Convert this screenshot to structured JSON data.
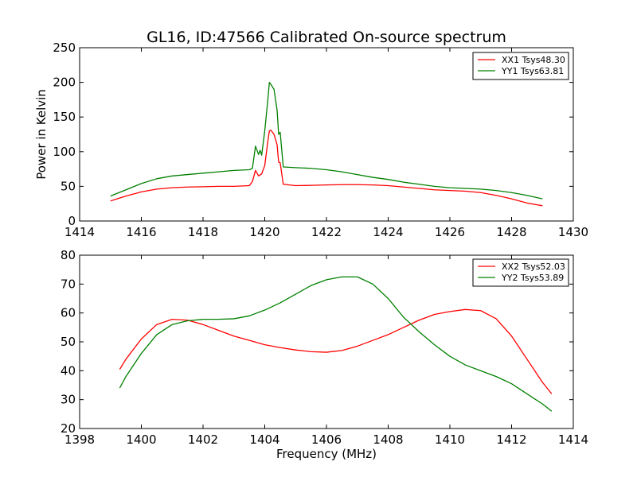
{
  "title": "GL16, ID:47566 Calibrated On-source spectrum",
  "chart_data": [
    {
      "type": "line",
      "ylabel": "Power in Kelvin",
      "xlabel": "",
      "xlim": [
        1414,
        1430
      ],
      "ylim": [
        0,
        250
      ],
      "xticks": [
        1414,
        1416,
        1418,
        1420,
        1422,
        1424,
        1426,
        1428,
        1430
      ],
      "yticks": [
        0,
        50,
        100,
        150,
        200,
        250
      ],
      "legend_position": "top-right",
      "grid": false,
      "series": [
        {
          "name": "XX1 Tsys48.30",
          "color": "#ff0000",
          "x": [
            1415.0,
            1415.5,
            1416.0,
            1416.5,
            1417.0,
            1417.5,
            1418.0,
            1418.5,
            1419.0,
            1419.5,
            1419.6,
            1419.7,
            1419.8,
            1419.9,
            1420.0,
            1420.1,
            1420.15,
            1420.2,
            1420.3,
            1420.4,
            1420.45,
            1420.5,
            1420.6,
            1421.0,
            1421.5,
            1422.0,
            1422.5,
            1423.0,
            1423.5,
            1424.0,
            1424.5,
            1425.0,
            1425.5,
            1426.0,
            1426.5,
            1427.0,
            1427.5,
            1428.0,
            1428.5,
            1429.0
          ],
          "y": [
            29,
            36,
            42,
            46,
            48,
            49,
            49.5,
            50,
            50,
            51,
            57,
            73,
            65,
            68,
            80,
            115,
            130,
            131,
            125,
            110,
            85,
            84,
            53,
            51,
            51.5,
            52,
            52.5,
            52.5,
            52,
            51,
            49,
            47,
            45,
            44,
            43,
            41,
            37,
            32,
            26,
            22
          ]
        },
        {
          "name": "YY1 Tsys63.81",
          "color": "#008000",
          "x": [
            1415.0,
            1415.5,
            1416.0,
            1416.5,
            1417.0,
            1417.5,
            1418.0,
            1418.5,
            1419.0,
            1419.5,
            1419.6,
            1419.7,
            1419.75,
            1419.8,
            1419.85,
            1419.9,
            1420.0,
            1420.1,
            1420.15,
            1420.2,
            1420.3,
            1420.4,
            1420.45,
            1420.5,
            1420.6,
            1421.0,
            1421.5,
            1422.0,
            1422.5,
            1423.0,
            1423.5,
            1424.0,
            1424.5,
            1425.0,
            1425.5,
            1426.0,
            1426.5,
            1427.0,
            1427.5,
            1428.0,
            1428.5,
            1429.0
          ],
          "y": [
            36,
            45,
            54,
            61,
            65,
            67,
            69,
            71,
            73,
            74,
            76,
            108,
            102,
            96,
            102,
            95,
            130,
            175,
            200,
            197,
            190,
            160,
            125,
            128,
            78,
            77,
            76,
            74,
            71,
            67,
            63,
            60,
            56,
            53,
            50,
            48,
            47,
            46,
            44,
            41,
            37,
            32
          ]
        }
      ]
    },
    {
      "type": "line",
      "ylabel": "",
      "xlabel": "Frequency (MHz)",
      "xlim": [
        1398,
        1414
      ],
      "ylim": [
        20,
        80
      ],
      "xticks": [
        1398,
        1400,
        1402,
        1404,
        1406,
        1408,
        1410,
        1412,
        1414
      ],
      "yticks": [
        20,
        30,
        40,
        50,
        60,
        70,
        80
      ],
      "legend_position": "top-right",
      "grid": false,
      "series": [
        {
          "name": "XX2 Tsys52.03",
          "color": "#ff0000",
          "x": [
            1399.3,
            1399.5,
            1400.0,
            1400.5,
            1401.0,
            1401.5,
            1402.0,
            1402.5,
            1403.0,
            1403.5,
            1404.0,
            1404.5,
            1405.0,
            1405.5,
            1406.0,
            1406.5,
            1407.0,
            1407.5,
            1408.0,
            1408.5,
            1409.0,
            1409.5,
            1410.0,
            1410.5,
            1411.0,
            1411.5,
            1412.0,
            1412.5,
            1413.0,
            1413.3
          ],
          "y": [
            40.5,
            44,
            51,
            56,
            57.8,
            57.5,
            56,
            54,
            52,
            50.5,
            49,
            48,
            47.2,
            46.6,
            46.4,
            47,
            48.5,
            50.5,
            52.5,
            55,
            57.5,
            59.5,
            60.5,
            61.2,
            60.8,
            58,
            52,
            44,
            36,
            32
          ]
        },
        {
          "name": "YY2 Tsys53.89",
          "color": "#008000",
          "x": [
            1399.3,
            1399.5,
            1400.0,
            1400.5,
            1401.0,
            1401.5,
            1402.0,
            1402.5,
            1403.0,
            1403.5,
            1404.0,
            1404.5,
            1405.0,
            1405.5,
            1406.0,
            1406.5,
            1407.0,
            1407.5,
            1408.0,
            1408.5,
            1409.0,
            1409.5,
            1410.0,
            1410.5,
            1411.0,
            1411.5,
            1412.0,
            1412.5,
            1413.0,
            1413.3
          ],
          "y": [
            34,
            38,
            46,
            52.5,
            56,
            57.3,
            57.8,
            57.8,
            58,
            59,
            61,
            63.5,
            66.5,
            69.5,
            71.5,
            72.5,
            72.5,
            70,
            65,
            58.5,
            53.5,
            49,
            45,
            42,
            40,
            38,
            35.5,
            32,
            28.5,
            26
          ]
        }
      ]
    }
  ]
}
